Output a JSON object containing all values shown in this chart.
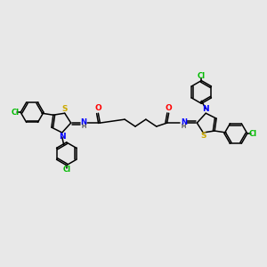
{
  "background_color": "#e8e8e8",
  "atom_colors": {
    "S": "#ccaa00",
    "N": "#0000ff",
    "O": "#ff0000",
    "Cl": "#00bb00",
    "C": "#000000"
  },
  "figsize": [
    3.0,
    3.0
  ],
  "dpi": 100
}
